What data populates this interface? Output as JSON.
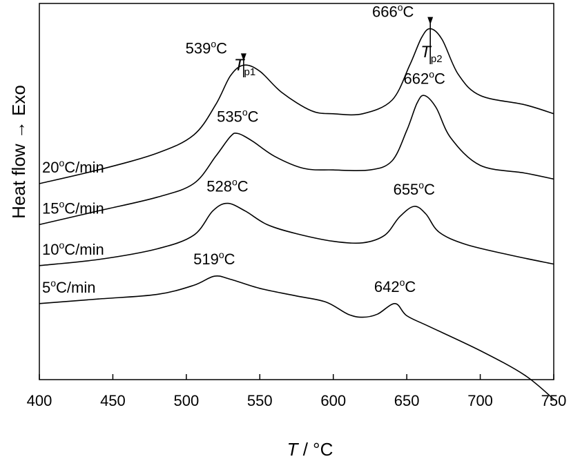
{
  "chart_data": {
    "type": "line",
    "title": "",
    "xlabel": "T / °C",
    "ylabel": "Heat flow → Exo",
    "xlim": [
      400,
      750
    ],
    "xticks": [
      400,
      450,
      500,
      550,
      600,
      650,
      700,
      750
    ],
    "y_ticks_shown": false,
    "grid": false,
    "series": [
      {
        "name": "20°C/min",
        "rate_label": "20",
        "rate_unit": "C/min",
        "points": [
          [
            400,
            1.0
          ],
          [
            440,
            1.09
          ],
          [
            480,
            1.2
          ],
          [
            505,
            1.32
          ],
          [
            520,
            1.52
          ],
          [
            530,
            1.71
          ],
          [
            539,
            1.78
          ],
          [
            550,
            1.74
          ],
          [
            565,
            1.6
          ],
          [
            585,
            1.48
          ],
          [
            600,
            1.46
          ],
          [
            620,
            1.46
          ],
          [
            640,
            1.55
          ],
          [
            652,
            1.78
          ],
          [
            660,
            1.96
          ],
          [
            666,
            2.02
          ],
          [
            674,
            1.95
          ],
          [
            685,
            1.72
          ],
          [
            700,
            1.58
          ],
          [
            730,
            1.52
          ],
          [
            750,
            1.46
          ]
        ],
        "peaks": [
          {
            "x": 539,
            "label": "539",
            "unit": "C"
          },
          {
            "x": 666,
            "label": "666",
            "unit": "C"
          }
        ]
      },
      {
        "name": "15°C/min",
        "rate_label": "15",
        "rate_unit": "C/min",
        "points": [
          [
            400,
            0.73
          ],
          [
            440,
            0.82
          ],
          [
            480,
            0.91
          ],
          [
            505,
            1.0
          ],
          [
            520,
            1.18
          ],
          [
            530,
            1.31
          ],
          [
            535,
            1.33
          ],
          [
            545,
            1.28
          ],
          [
            560,
            1.18
          ],
          [
            580,
            1.1
          ],
          [
            600,
            1.09
          ],
          [
            625,
            1.09
          ],
          [
            640,
            1.15
          ],
          [
            650,
            1.35
          ],
          [
            657,
            1.53
          ],
          [
            662,
            1.58
          ],
          [
            670,
            1.5
          ],
          [
            680,
            1.3
          ],
          [
            700,
            1.12
          ],
          [
            730,
            1.07
          ],
          [
            750,
            1.03
          ]
        ],
        "peaks": [
          {
            "x": 535,
            "label": "535",
            "unit": "C"
          },
          {
            "x": 662,
            "label": "662",
            "unit": "C"
          }
        ]
      },
      {
        "name": "10°C/min",
        "rate_label": "10",
        "rate_unit": "C/min",
        "points": [
          [
            400,
            0.46
          ],
          [
            440,
            0.5
          ],
          [
            480,
            0.57
          ],
          [
            505,
            0.66
          ],
          [
            518,
            0.82
          ],
          [
            528,
            0.87
          ],
          [
            540,
            0.82
          ],
          [
            555,
            0.73
          ],
          [
            575,
            0.67
          ],
          [
            600,
            0.62
          ],
          [
            620,
            0.61
          ],
          [
            635,
            0.66
          ],
          [
            645,
            0.78
          ],
          [
            655,
            0.85
          ],
          [
            663,
            0.8
          ],
          [
            672,
            0.68
          ],
          [
            690,
            0.6
          ],
          [
            720,
            0.53
          ],
          [
            750,
            0.47
          ]
        ],
        "peaks": [
          {
            "x": 528,
            "label": "528",
            "unit": "C"
          },
          {
            "x": 655,
            "label": "655",
            "unit": "C"
          }
        ]
      },
      {
        "name": "5°C/min",
        "rate_label": "5",
        "rate_unit": "C/min",
        "points": [
          [
            400,
            0.21
          ],
          [
            440,
            0.24
          ],
          [
            480,
            0.27
          ],
          [
            505,
            0.33
          ],
          [
            519,
            0.39
          ],
          [
            530,
            0.37
          ],
          [
            550,
            0.31
          ],
          [
            575,
            0.26
          ],
          [
            595,
            0.22
          ],
          [
            610,
            0.14
          ],
          [
            620,
            0.12
          ],
          [
            630,
            0.14
          ],
          [
            642,
            0.21
          ],
          [
            650,
            0.13
          ],
          [
            665,
            0.06
          ],
          [
            700,
            -0.1
          ],
          [
            730,
            -0.26
          ],
          [
            750,
            -0.42
          ]
        ],
        "peaks": [
          {
            "x": 519,
            "label": "519",
            "unit": "C"
          },
          {
            "x": 642,
            "label": "642",
            "unit": "C"
          }
        ]
      }
    ],
    "annotations": [
      {
        "text": "T",
        "subscript": "p1",
        "x": 539
      },
      {
        "text": "T",
        "subscript": "p2",
        "x": 666
      }
    ],
    "degree_symbol": "o"
  }
}
